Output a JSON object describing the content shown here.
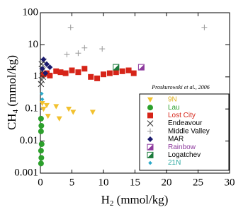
{
  "chart_data": {
    "type": "scatter",
    "ylabel": [
      "CH",
      "4",
      " (mmol/kg)"
    ],
    "xlabel": [
      "H",
      "2",
      " (mmol/kg)"
    ],
    "annotation": "Proskurowski et al., 2006",
    "xlim": [
      0,
      30
    ],
    "xticks": [
      0,
      5,
      10,
      15,
      20,
      25,
      30
    ],
    "ylim": [
      0.001,
      100
    ],
    "yticks": [
      0.001,
      0.01,
      0.1,
      1,
      10,
      100
    ],
    "log_y": true,
    "grid": false,
    "legend": "lower right",
    "series": [
      {
        "name": "9N",
        "color": "#f2c12e",
        "label_color": "#e0b020",
        "marker": "triangle-down",
        "x": [
          0.3,
          0.5,
          1,
          1.2,
          2.5,
          3,
          4.5,
          5.2,
          8.3
        ],
        "values": [
          0.15,
          0.1,
          0.13,
          0.06,
          0.12,
          0.05,
          0.1,
          0.08,
          0.08
        ]
      },
      {
        "name": "Lau",
        "color": "#2ca02c",
        "label_color": "#2ca02c",
        "marker": "circle",
        "x": [
          0.1,
          0.15,
          0.1,
          0.2,
          0.1,
          0.15,
          0.1
        ],
        "values": [
          0.05,
          0.03,
          0.02,
          0.008,
          0.005,
          0.003,
          0.002
        ]
      },
      {
        "name": "Lost City",
        "color": "#d62418",
        "label_color": "#d62418",
        "marker": "square",
        "x": [
          0.5,
          1,
          1.5,
          2.5,
          3.2,
          4,
          5,
          6,
          7,
          8,
          9,
          10,
          11,
          12,
          13,
          14,
          14.8
        ],
        "values": [
          1.2,
          1.3,
          1.1,
          1.5,
          1.4,
          1.3,
          1.6,
          1.4,
          1.8,
          1.0,
          0.9,
          1.2,
          1.3,
          1.4,
          1.5,
          1.6,
          1.3
        ]
      },
      {
        "name": "Endeavour",
        "color": "#333333",
        "label_color": "#000000",
        "marker": "x",
        "x": [
          0.1,
          0.2,
          0.3,
          0.2,
          0.5,
          0.4
        ],
        "values": [
          0.6,
          0.8,
          1.5,
          2.5,
          3,
          1
        ]
      },
      {
        "name": "Middle Valley",
        "color": "#999999",
        "label_color": "#000000",
        "marker": "plus",
        "x": [
          4.8,
          26,
          4.2,
          6,
          7,
          9.8,
          0.3,
          0.5
        ],
        "values": [
          35,
          35,
          5,
          5.5,
          8,
          7.5,
          3,
          2
        ]
      },
      {
        "name": "MAR",
        "color": "#1a1a6e",
        "label_color": "#000000",
        "marker": "diamond",
        "x": [
          0.5,
          1,
          1.5,
          0.3,
          0.8
        ],
        "values": [
          3.5,
          2.5,
          2,
          1.8,
          1.3
        ]
      },
      {
        "name": "Rainbow",
        "color": "#8e3a9e",
        "label_color": "#8e3a9e",
        "marker": "half-square",
        "x": [
          16
        ],
        "values": [
          2
        ]
      },
      {
        "name": "Logatchev",
        "color": "#1a7a3a",
        "label_color": "#000000",
        "marker": "half-square",
        "x": [
          12
        ],
        "values": [
          2
        ]
      },
      {
        "name": "21N",
        "color": "#2aa8c8",
        "label_color": "#2aa8a0",
        "marker": "small-diamond",
        "x": [
          0.2,
          0.3
        ],
        "values": [
          0.3,
          0.2
        ]
      }
    ]
  }
}
